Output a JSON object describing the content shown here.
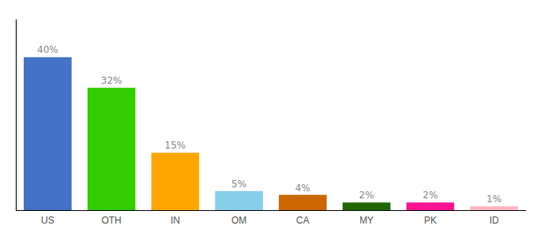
{
  "chart_data": {
    "type": "bar",
    "categories": [
      "US",
      "OTH",
      "IN",
      "OM",
      "CA",
      "MY",
      "PK",
      "ID"
    ],
    "values": [
      40,
      32,
      15,
      5,
      4,
      2,
      2,
      1
    ],
    "value_labels": [
      "40%",
      "32%",
      "15%",
      "5%",
      "4%",
      "2%",
      "2%",
      "1%"
    ],
    "colors": [
      "#4472C4",
      "#33CC00",
      "#FFA500",
      "#87CEEB",
      "#CC6600",
      "#226600",
      "#FF1493",
      "#FFB6C1"
    ],
    "ylim": [
      0,
      50
    ],
    "yticks": [],
    "grid": false,
    "data_labels": true,
    "tick_labels": "x"
  }
}
